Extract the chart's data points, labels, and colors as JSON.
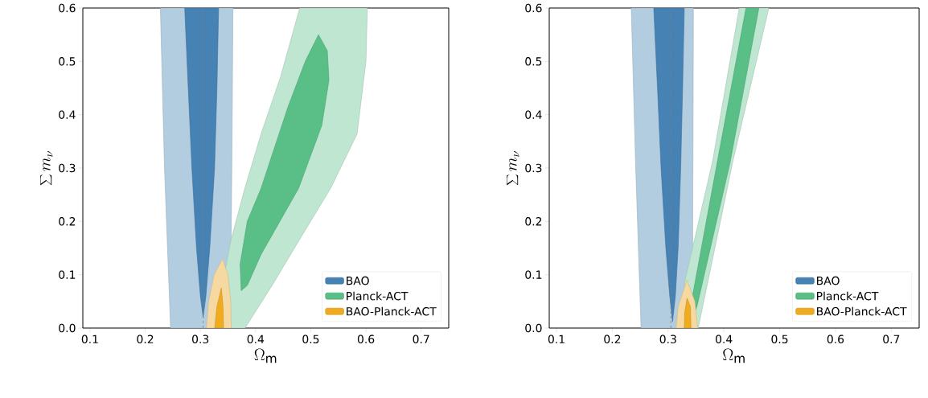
{
  "chart_data": [
    {
      "type": "area",
      "xlabel": "\\Omega_{\\rm m}",
      "ylabel": "\\sum m_\\nu",
      "xlim": [
        0.087,
        0.75
      ],
      "ylim": [
        0,
        0.6
      ],
      "xticks": [
        0.1,
        0.2,
        0.3,
        0.4,
        0.5,
        0.6,
        0.7
      ],
      "yticks": [
        {
          "value": 0,
          "label": "0.0"
        },
        0.1,
        0.2,
        0.3,
        0.4,
        0.5,
        0.6
      ],
      "legend": "bottom right",
      "series": [
        {
          "color": "#b3cde0",
          "x": [
            0.2275,
            0.235,
            0.246,
            0.354,
            0.357,
            0.359
          ],
          "values": [
            0.6,
            0.3,
            0,
            0,
            0.3,
            0.6
          ]
        },
        {
          "name": "BAO",
          "color": "#4682b4",
          "x": [
            0.2716,
            0.278,
            0.2846,
            0.293,
            0.3,
            0.305,
            0.31,
            0.317,
            0.3257,
            0.33,
            0.333
          ],
          "values": [
            0.6,
            0.45,
            0.3,
            0.15,
            0.06,
            0.02,
            0.06,
            0.15,
            0.3,
            0.45,
            0.6
          ]
        },
        {
          "color": "#bfe6d1",
          "x": [
            0.328,
            0.34,
            0.355,
            0.38,
            0.41,
            0.445,
            0.48,
            0.6025,
            0.6,
            0.584,
            0.536,
            0.478,
            0.43,
            0.381
          ],
          "values": [
            0,
            0.08,
            0.163,
            0.26,
            0.364,
            0.47,
            0.6,
            0.6,
            0.5,
            0.364,
            0.262,
            0.163,
            0.08,
            0
          ]
        },
        {
          "name": "Planck-ACT",
          "color": "#59bf86",
          "x": [
            0.374,
            0.372,
            0.385,
            0.41,
            0.4585,
            0.49,
            0.514,
            0.53,
            0.533,
            0.52,
            0.478,
            0.41,
            0.385
          ],
          "values": [
            0.07,
            0.12,
            0.2,
            0.262,
            0.414,
            0.5,
            0.55,
            0.52,
            0.465,
            0.38,
            0.262,
            0.138,
            0.08
          ]
        },
        {
          "color": "#f5d9a0",
          "x": [
            0.311,
            0.315,
            0.325,
            0.34,
            0.35,
            0.355,
            0.356
          ],
          "values": [
            0,
            0.05,
            0.1,
            0.13,
            0.1,
            0.05,
            0
          ]
        },
        {
          "name": "BAO-Planck-ACT",
          "color": "#f0ac1e",
          "x": [
            0.326,
            0.33,
            0.338,
            0.341,
            0.342
          ],
          "values": [
            0,
            0.04,
            0.075,
            0.04,
            0
          ]
        }
      ],
      "ref_lines": [
        {
          "axis": "x",
          "value": 0.305,
          "color": "#808080",
          "line_style": "dashed"
        }
      ]
    },
    {
      "type": "area",
      "xlabel": "\\Omega_{\\rm m}",
      "ylabel": "\\sum m_\\nu",
      "xlim": [
        0.087,
        0.75
      ],
      "ylim": [
        0,
        0.6
      ],
      "xticks": [
        0.1,
        0.2,
        0.3,
        0.4,
        0.5,
        0.6,
        0.7
      ],
      "yticks": [
        {
          "value": 0,
          "label": "0.0"
        },
        0.1,
        0.2,
        0.3,
        0.4,
        0.5,
        0.6
      ],
      "legend": "bottom right",
      "series": [
        {
          "color": "#b3cde0",
          "x": [
            0.234,
            0.242,
            0.2516,
            0.3435,
            0.3445,
            0.3454
          ],
          "values": [
            0.6,
            0.3,
            0,
            0,
            0.3,
            0.6
          ]
        },
        {
          "name": "BAO",
          "color": "#4682b4",
          "x": [
            0.2743,
            0.281,
            0.2874,
            0.296,
            0.303,
            0.308,
            0.313,
            0.318,
            0.3226,
            0.326,
            0.329
          ],
          "values": [
            0.6,
            0.45,
            0.3,
            0.15,
            0.06,
            0.012,
            0.06,
            0.15,
            0.3,
            0.45,
            0.6
          ]
        },
        {
          "color": "#bfe6d1",
          "x": [
            0.322,
            0.33,
            0.38,
            0.4275,
            0.4806,
            0.4164,
            0.354
          ],
          "values": [
            0,
            0.087,
            0.314,
            0.6,
            0.6,
            0.314,
            0
          ]
        },
        {
          "name": "Planck-ACT",
          "color": "#59bf86",
          "x": [
            0.344,
            0.342,
            0.388,
            0.4396,
            0.4627,
            0.411,
            0.3516
          ],
          "values": [
            0.02,
            0.05,
            0.31,
            0.6,
            0.6,
            0.31,
            0.04
          ]
        },
        {
          "color": "#f5d9a0",
          "x": [
            0.3145,
            0.318,
            0.3338,
            0.348,
            0.353
          ],
          "values": [
            0,
            0.04,
            0.09,
            0.05,
            0
          ]
        },
        {
          "name": "BAO-Planck-ACT",
          "color": "#f0ac1e",
          "x": [
            0.329,
            0.33,
            0.334,
            0.34,
            0.341
          ],
          "values": [
            0,
            0.03,
            0.056,
            0.04,
            0
          ]
        }
      ],
      "ref_lines": [
        {
          "axis": "x",
          "value": 0.305,
          "color": "#808080",
          "line_style": "dashed"
        }
      ]
    }
  ]
}
